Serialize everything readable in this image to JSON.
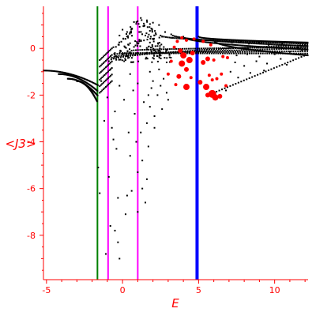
{
  "chart_data": {
    "type": "scatter",
    "xlabel": "E",
    "ylabel": "<J3>",
    "xlim": [
      -5.2,
      12.2
    ],
    "ylim": [
      -9.9,
      1.8
    ],
    "x_ticks": [
      -5,
      0,
      5,
      10
    ],
    "y_ticks": [
      -8,
      -6,
      -4,
      -2,
      0
    ],
    "grid": false,
    "colors": {
      "axis": "#ff0000",
      "points": "#000000",
      "highlight": "#ff0000",
      "line_green": "#008000",
      "line_magenta": "#ff00ff",
      "line_blue": "#0000ff"
    },
    "vertical_lines": [
      {
        "x": -1.65,
        "color": "#008000"
      },
      {
        "x": -0.95,
        "color": "#ff00ff"
      },
      {
        "x": 1.0,
        "color": "#ff00ff"
      },
      {
        "x": 4.9,
        "color": "#0000ff"
      }
    ],
    "highlight_points": [
      {
        "x": 3.6,
        "y": 0.3,
        "size": 2
      },
      {
        "x": 3.9,
        "y": 0.45,
        "size": 2
      },
      {
        "x": 4.2,
        "y": 0.35,
        "size": 2
      },
      {
        "x": 3.4,
        "y": 0.05,
        "size": 2
      },
      {
        "x": 3.8,
        "y": -0.1,
        "size": 3
      },
      {
        "x": 4.0,
        "y": -0.3,
        "size": 4
      },
      {
        "x": 4.4,
        "y": -0.5,
        "size": 4
      },
      {
        "x": 3.9,
        "y": -0.65,
        "size": 4
      },
      {
        "x": 4.2,
        "y": -0.9,
        "size": 3
      },
      {
        "x": 3.7,
        "y": -1.2,
        "size": 3
      },
      {
        "x": 3.0,
        "y": -1.1,
        "size": 2
      },
      {
        "x": 3.5,
        "y": -1.55,
        "size": 2
      },
      {
        "x": 4.2,
        "y": -1.65,
        "size": 4
      },
      {
        "x": 4.5,
        "y": -1.25,
        "size": 2
      },
      {
        "x": 4.6,
        "y": -0.2,
        "size": 3
      },
      {
        "x": 4.7,
        "y": 0.4,
        "size": 2
      },
      {
        "x": 5.3,
        "y": -0.6,
        "size": 3
      },
      {
        "x": 5.6,
        "y": -0.45,
        "size": 3
      },
      {
        "x": 6.0,
        "y": -0.5,
        "size": 2
      },
      {
        "x": 5.7,
        "y": -1.15,
        "size": 2
      },
      {
        "x": 6.2,
        "y": -1.3,
        "size": 2
      },
      {
        "x": 5.1,
        "y": -1.45,
        "size": 3
      },
      {
        "x": 5.5,
        "y": -1.65,
        "size": 4
      },
      {
        "x": 5.9,
        "y": -1.95,
        "size": 5
      },
      {
        "x": 6.1,
        "y": -2.1,
        "size": 4
      },
      {
        "x": 5.6,
        "y": -2.0,
        "size": 3
      },
      {
        "x": 6.4,
        "y": -2.05,
        "size": 3
      },
      {
        "x": 6.8,
        "y": -1.6,
        "size": 2
      },
      {
        "x": 6.5,
        "y": -1.1,
        "size": 2
      },
      {
        "x": 6.6,
        "y": -0.35,
        "size": 2
      },
      {
        "x": 6.9,
        "y": -0.4,
        "size": 2
      },
      {
        "x": 5.3,
        "y": 0.3,
        "size": 2
      },
      {
        "x": 5.8,
        "y": 0.15,
        "size": 2
      },
      {
        "x": 3.2,
        "y": -0.55,
        "size": 2
      },
      {
        "x": 5.9,
        "y": -1.35,
        "size": 2
      }
    ],
    "scatter_points": [
      [
        1.2,
        1.3
      ],
      [
        1.6,
        1.2
      ],
      [
        2.0,
        1.1
      ],
      [
        2.4,
        1.0
      ],
      [
        1.4,
        0.95
      ],
      [
        0.9,
        1.05
      ],
      [
        0.6,
        0.85
      ],
      [
        1.1,
        0.7
      ],
      [
        1.8,
        0.75
      ],
      [
        2.2,
        0.6
      ],
      [
        0.3,
        0.7
      ],
      [
        0.0,
        0.8
      ],
      [
        2.8,
        0.7
      ],
      [
        2.6,
        0.5
      ],
      [
        1.5,
        0.55
      ],
      [
        -0.2,
        0.55
      ],
      [
        3.2,
        0.45
      ],
      [
        7.2,
        0.25
      ],
      [
        7.8,
        0.3
      ],
      [
        8.3,
        0.2
      ],
      [
        9.0,
        0.25
      ],
      [
        9.6,
        0.15
      ],
      [
        10.5,
        0.2
      ],
      [
        7.5,
        -0.3
      ],
      [
        8.2,
        -0.25
      ],
      [
        9.0,
        -0.35
      ],
      [
        10.0,
        -0.25
      ],
      [
        11.0,
        -0.15
      ],
      [
        11.8,
        -0.1
      ],
      [
        7.4,
        -0.6
      ],
      [
        8.0,
        -0.75
      ],
      [
        8.8,
        -0.55
      ],
      [
        9.5,
        -0.65
      ],
      [
        10.4,
        -0.45
      ],
      [
        7.1,
        -1.0
      ],
      [
        7.6,
        -1.25
      ],
      [
        8.4,
        -1.05
      ],
      [
        6.8,
        -1.8
      ],
      [
        2.4,
        -0.9
      ],
      [
        2.7,
        -1.3
      ],
      [
        2.0,
        -1.4
      ],
      [
        2.3,
        -2.0
      ],
      [
        1.8,
        -2.5
      ],
      [
        2.1,
        -2.9
      ],
      [
        1.4,
        -2.3
      ],
      [
        1.6,
        -3.2
      ],
      [
        1.2,
        -3.6
      ],
      [
        1.7,
        -4.2
      ],
      [
        1.3,
        -4.8
      ],
      [
        1.0,
        -5.3
      ],
      [
        1.6,
        -5.6
      ],
      [
        1.3,
        -6.0
      ],
      [
        1.5,
        -6.6
      ],
      [
        1.0,
        -7.0
      ],
      [
        0.6,
        -6.1
      ],
      [
        0.3,
        -6.3
      ],
      [
        -0.3,
        -6.4
      ],
      [
        0.2,
        -7.1
      ],
      [
        -0.8,
        -7.6
      ],
      [
        -0.5,
        -7.8
      ],
      [
        -0.3,
        -8.3
      ],
      [
        -0.2,
        -9.0
      ],
      [
        -1.1,
        -8.8
      ],
      [
        -1.5,
        -6.2
      ],
      [
        -1.6,
        -5.1
      ],
      [
        -1.2,
        -3.1
      ],
      [
        -0.7,
        -3.4
      ],
      [
        -0.4,
        -4.3
      ],
      [
        -0.5,
        -2.7
      ],
      [
        0.4,
        -3.6
      ],
      [
        0.8,
        -2.8
      ],
      [
        0.1,
        -2.2
      ],
      [
        0.7,
        -1.8
      ],
      [
        -1.4,
        -1.4
      ],
      [
        -1.0,
        -2.1
      ],
      [
        -0.2,
        -1.6
      ],
      [
        0.5,
        -1.1
      ],
      [
        1.8,
        -1.0
      ],
      [
        2.5,
        -1.6
      ],
      [
        3.0,
        -2.2
      ],
      [
        -0.8,
        -0.9
      ],
      [
        2.9,
        -0.6
      ],
      [
        0.2,
        -0.5
      ],
      [
        -0.6,
        0.05
      ],
      [
        1.1,
        0.3
      ],
      [
        2.3,
        0.1
      ],
      [
        1.8,
        0.25
      ],
      [
        0.4,
        0.15
      ],
      [
        11.5,
        0.05
      ],
      [
        12.0,
        -0.05
      ],
      [
        10.8,
        -0.7
      ],
      [
        9.3,
        -0.95
      ],
      [
        1.7,
        -2.0
      ],
      [
        1.0,
        -1.5
      ],
      [
        2.6,
        -2.6
      ],
      [
        2.1,
        -3.4
      ],
      [
        0.9,
        -4.0
      ],
      [
        -0.9,
        -5.5
      ],
      [
        -0.6,
        -3.9
      ],
      [
        0.5,
        -4.6
      ],
      [
        1.9,
        -1.7
      ],
      [
        2.9,
        -1.9
      ]
    ]
  }
}
